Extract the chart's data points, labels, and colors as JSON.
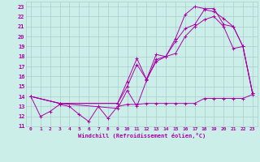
{
  "background_color": "#cceee8",
  "grid_color": "#aacccc",
  "line_color": "#aa00aa",
  "xlabel": "Windchill (Refroidissement éolien,°C)",
  "xlim": [
    -0.5,
    23.5
  ],
  "ylim": [
    11,
    23.5
  ],
  "xticks": [
    0,
    1,
    2,
    3,
    4,
    5,
    6,
    7,
    8,
    9,
    10,
    11,
    12,
    13,
    14,
    15,
    16,
    17,
    18,
    19,
    20,
    21,
    22,
    23
  ],
  "yticks": [
    11,
    12,
    13,
    14,
    15,
    16,
    17,
    18,
    19,
    20,
    21,
    22,
    23
  ],
  "series": [
    {
      "x": [
        0,
        1,
        2,
        3,
        4,
        5,
        6,
        7,
        8,
        9,
        10,
        11,
        12,
        13,
        14,
        15,
        16,
        17,
        18,
        19,
        20,
        21,
        22,
        23
      ],
      "y": [
        14,
        12,
        12.5,
        13.2,
        13,
        12.2,
        11.5,
        13,
        11.8,
        13,
        13.2,
        13.2,
        13.3,
        13.3,
        13.3,
        13.3,
        13.3,
        13.3,
        13.8,
        13.8,
        13.8,
        13.8,
        13.8,
        14.2
      ]
    },
    {
      "x": [
        0,
        3,
        9,
        10,
        11,
        12,
        13,
        14,
        15,
        16,
        17,
        18,
        19,
        20,
        21,
        22,
        23
      ],
      "y": [
        14,
        13.3,
        13.3,
        15.5,
        17.8,
        15.7,
        18.2,
        18.0,
        19.8,
        22.2,
        23.0,
        22.8,
        22.8,
        21.2,
        21.0,
        19.0,
        14.3
      ]
    },
    {
      "x": [
        0,
        3,
        9,
        10,
        11,
        12,
        13,
        14,
        15,
        16,
        17,
        18,
        19,
        20,
        21,
        22,
        23
      ],
      "y": [
        14,
        13.3,
        13.3,
        15.0,
        17.2,
        15.7,
        17.5,
        18.0,
        19.5,
        20.8,
        21.2,
        22.7,
        22.5,
        21.8,
        21.0,
        19.0,
        14.3
      ]
    },
    {
      "x": [
        0,
        3,
        9,
        10,
        11,
        12,
        13,
        14,
        15,
        16,
        17,
        18,
        19,
        20,
        21,
        22,
        23
      ],
      "y": [
        14,
        13.3,
        12.8,
        14.6,
        13.0,
        15.6,
        17.7,
        18.0,
        18.3,
        20.0,
        21.0,
        21.7,
        22.0,
        21.0,
        18.8,
        19.0,
        14.3
      ]
    }
  ]
}
